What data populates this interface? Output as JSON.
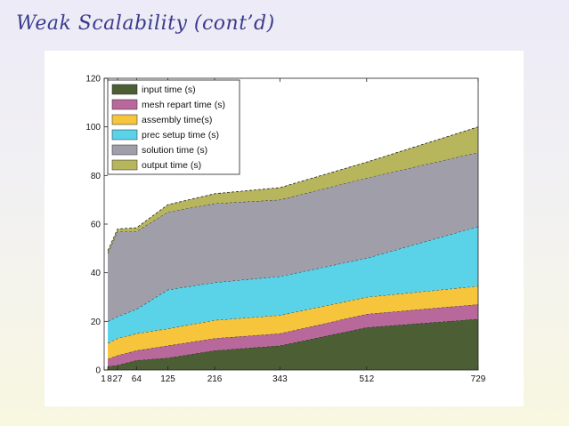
{
  "slide": {
    "title": "Weak Scalability (cont’d)"
  },
  "chart_data": {
    "type": "area",
    "stacked": true,
    "title": "",
    "xlabel": "",
    "ylabel": "",
    "x": [
      8,
      27,
      64,
      125,
      216,
      343,
      512,
      729
    ],
    "xlim": [
      1,
      729
    ],
    "ylim": [
      0,
      120
    ],
    "xticks": [
      "1",
      "8",
      "27",
      "64",
      "125",
      "216",
      "343",
      "512",
      "729"
    ],
    "xtick_values": [
      1,
      8,
      27,
      64,
      125,
      216,
      343,
      512,
      729
    ],
    "yticks": [
      "0",
      "20",
      "40",
      "60",
      "80",
      "100",
      "120"
    ],
    "ytick_values": [
      0,
      20,
      40,
      60,
      80,
      100,
      120
    ],
    "grid": false,
    "legend_position": "top-left",
    "series": [
      {
        "name": "input time  (s)",
        "color": "#4b5e34",
        "values": [
          1.5,
          2,
          4,
          5,
          8,
          10,
          17.5,
          21
        ]
      },
      {
        "name": "mesh repart time (s)",
        "color": "#b8689b",
        "values": [
          3,
          4,
          4,
          5,
          5,
          5,
          5.5,
          6
        ]
      },
      {
        "name": "assembly time(s)",
        "color": "#f6c53c",
        "values": [
          6.5,
          7,
          7,
          7,
          7.5,
          7.5,
          7,
          7.5
        ]
      },
      {
        "name": "prec setup time (s)",
        "color": "#5ad3e9",
        "values": [
          9,
          9,
          10,
          16,
          15.5,
          16,
          16,
          24.5
        ]
      },
      {
        "name": "solution time (s)",
        "color": "#a09fa9",
        "values": [
          28,
          35,
          32,
          32,
          32.5,
          31.5,
          33,
          30.5
        ]
      },
      {
        "name": "output time (s)",
        "color": "#b7b65c",
        "values": [
          1,
          1,
          1.5,
          3,
          4,
          5,
          6.5,
          10.5
        ]
      }
    ]
  }
}
